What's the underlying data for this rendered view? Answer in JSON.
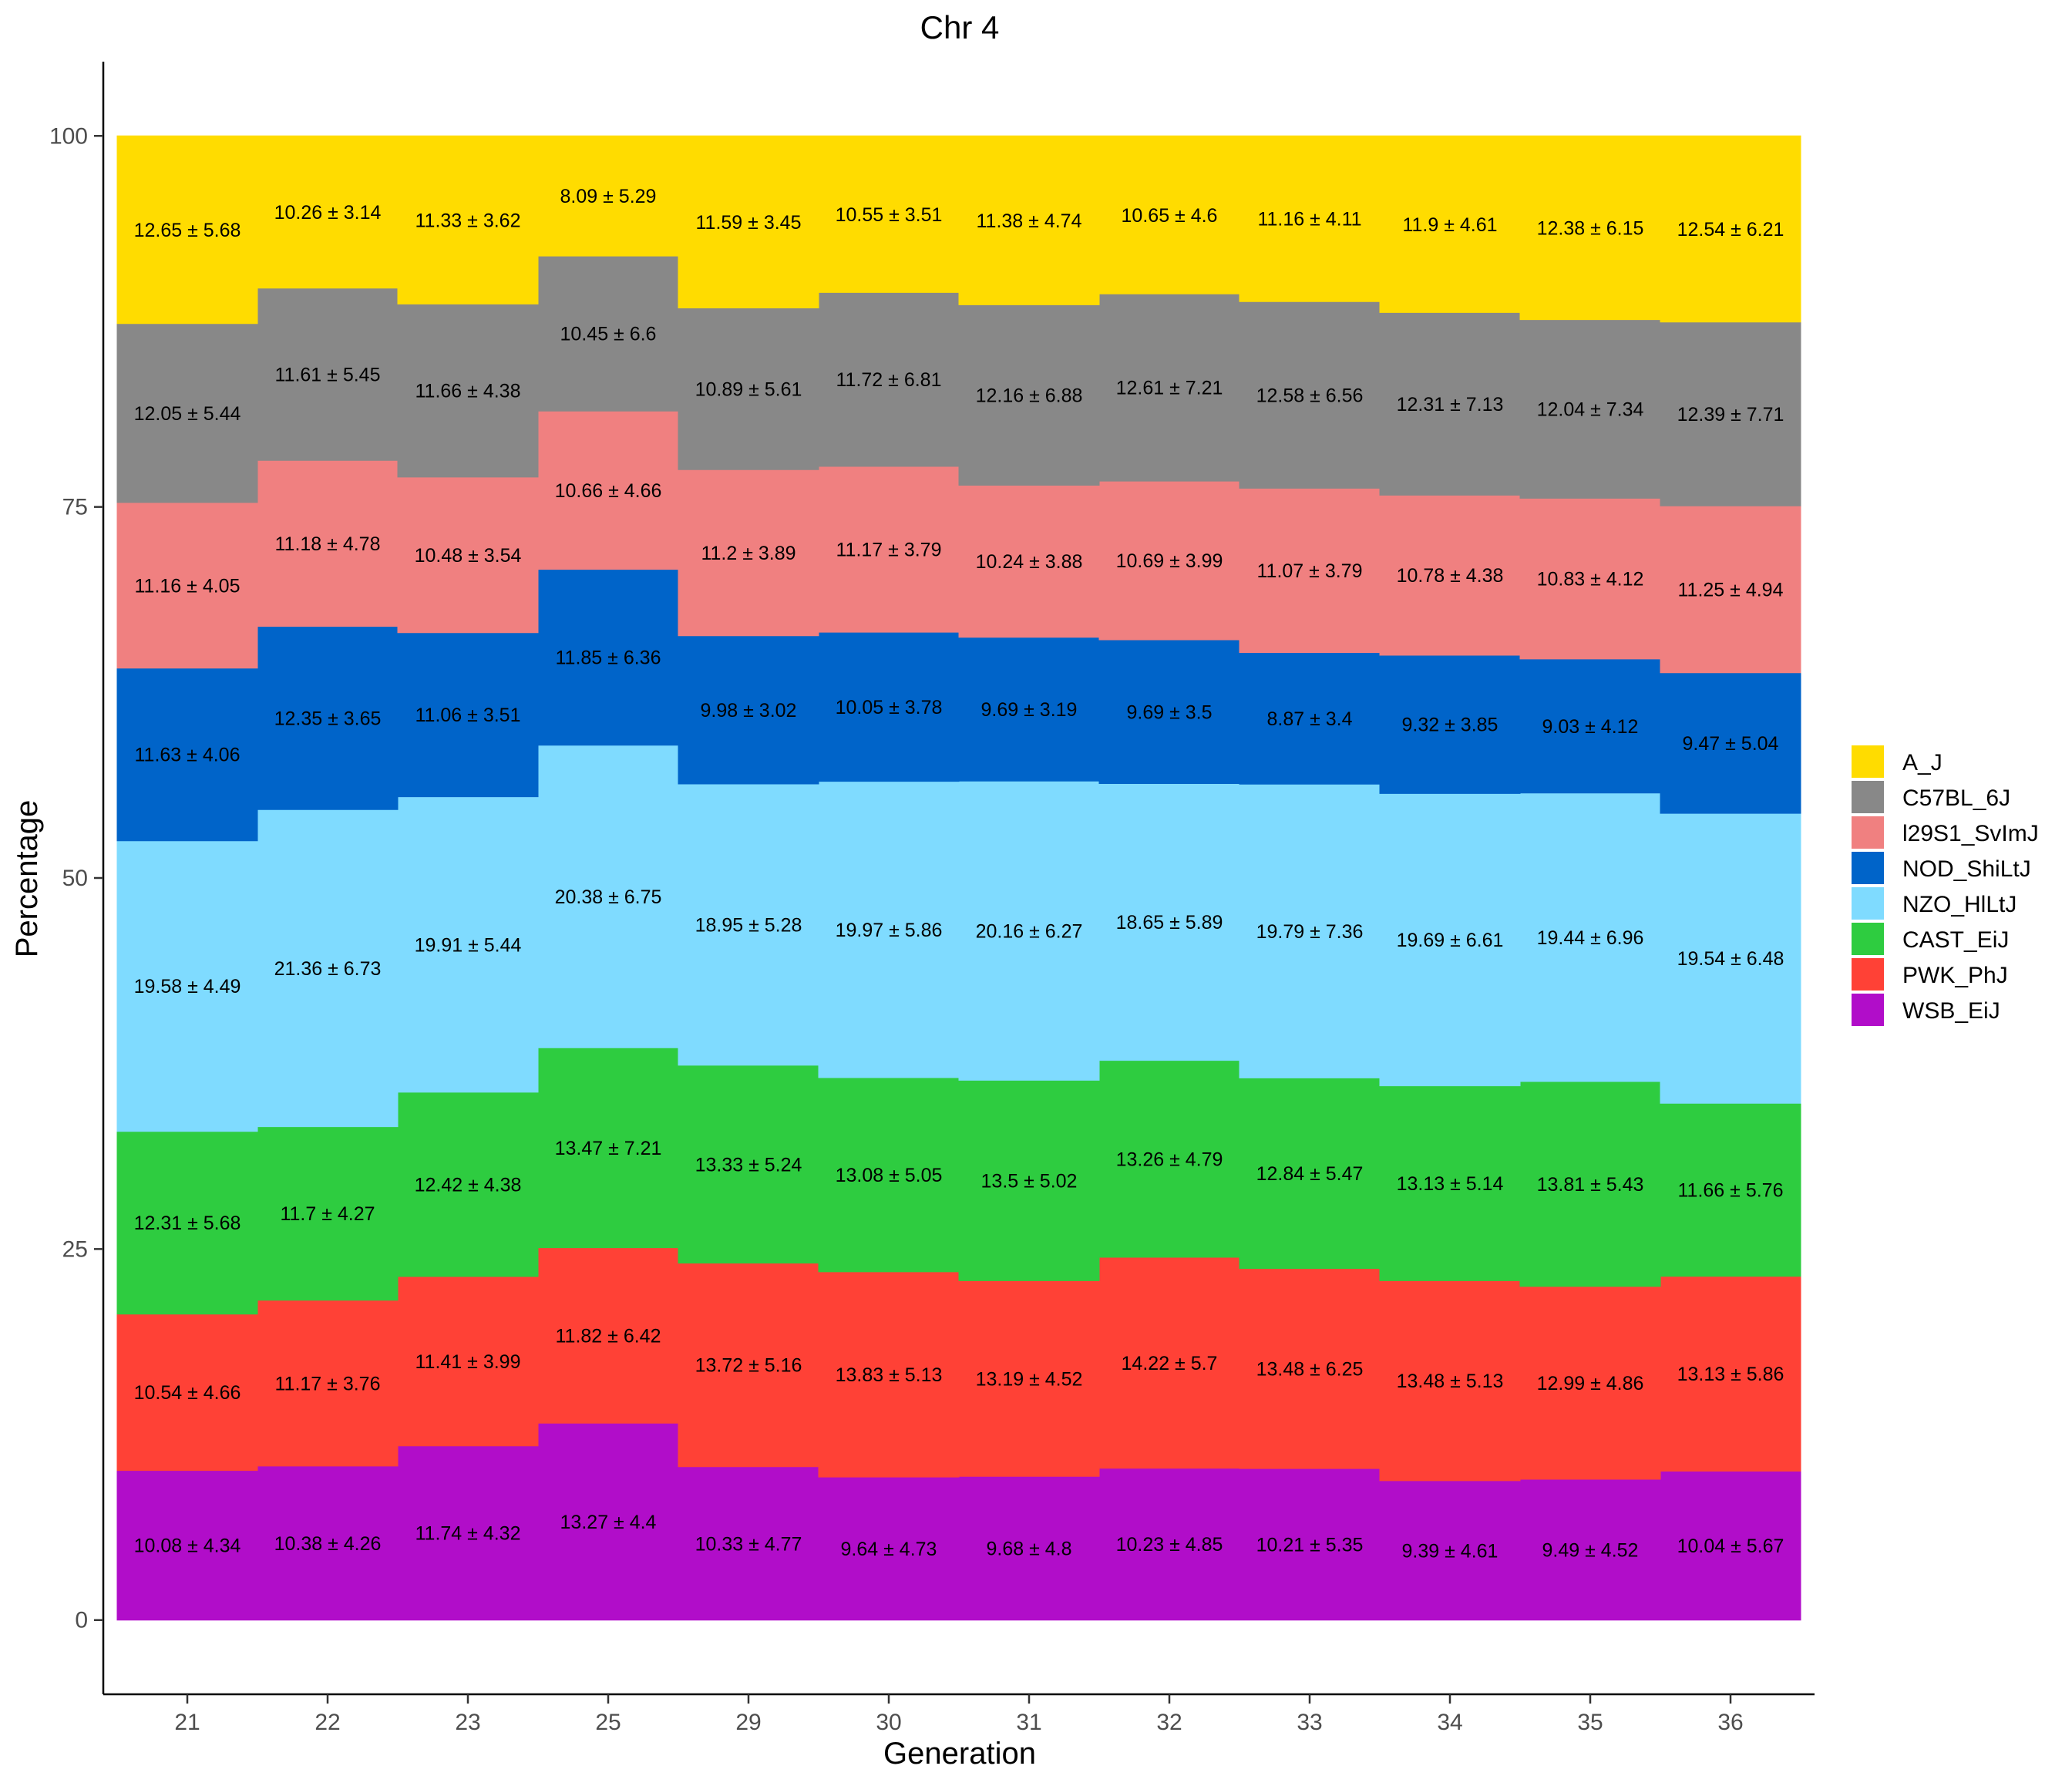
{
  "chart_data": {
    "type": "stacked-step-area",
    "title": "Chr 4",
    "xlabel": "Generation",
    "ylabel": "Percentage",
    "ylim": [
      -5,
      105
    ],
    "yticks": [
      0,
      25,
      50,
      75,
      100
    ],
    "categories": [
      "21",
      "22",
      "23",
      "25",
      "29",
      "30",
      "31",
      "32",
      "33",
      "34",
      "35",
      "36"
    ],
    "series": [
      {
        "name": "WSB_EiJ",
        "color": "#B10DC9",
        "values": [
          10.08,
          10.38,
          11.74,
          13.27,
          10.33,
          9.64,
          9.68,
          10.23,
          10.21,
          9.39,
          9.49,
          10.04
        ],
        "labels": [
          "10.08 ± 4.34",
          "10.38 ± 4.26",
          "11.74 ± 4.32",
          "13.27 ± 4.4",
          "10.33 ± 4.77",
          "9.64 ± 4.73",
          "9.68 ± 4.8",
          "10.23 ± 4.85",
          "10.21 ± 5.35",
          "9.39 ± 4.61",
          "9.49 ± 4.52",
          "10.04 ± 5.67"
        ]
      },
      {
        "name": "PWK_PhJ",
        "color": "#FF4136",
        "values": [
          10.54,
          11.17,
          11.41,
          11.82,
          13.72,
          13.83,
          13.19,
          14.22,
          13.48,
          13.48,
          12.99,
          13.13
        ],
        "labels": [
          "10.54 ± 4.66",
          "11.17 ± 3.76",
          "11.41 ± 3.99",
          "11.82 ± 6.42",
          "13.72 ± 5.16",
          "13.83 ± 5.13",
          "13.19 ± 4.52",
          "14.22 ± 5.7",
          "13.48 ± 6.25",
          "13.48 ± 5.13",
          "12.99 ± 4.86",
          "13.13 ± 5.86"
        ]
      },
      {
        "name": "CAST_EiJ",
        "color": "#2ECC40",
        "values": [
          12.31,
          11.7,
          12.42,
          13.47,
          13.33,
          13.08,
          13.5,
          13.26,
          12.84,
          13.13,
          13.81,
          11.66
        ],
        "labels": [
          "12.31 ± 5.68",
          "11.7 ± 4.27",
          "12.42 ± 4.38",
          "13.47 ± 7.21",
          "13.33 ± 5.24",
          "13.08 ± 5.05",
          "13.5 ± 5.02",
          "13.26 ± 4.79",
          "12.84 ± 5.47",
          "13.13 ± 5.14",
          "13.81 ± 5.43",
          "11.66 ± 5.76"
        ]
      },
      {
        "name": "NZO_HlLtJ",
        "color": "#7FDBFF",
        "values": [
          19.58,
          21.36,
          19.91,
          20.38,
          18.95,
          19.97,
          20.16,
          18.65,
          19.79,
          19.69,
          19.44,
          19.54
        ],
        "labels": [
          "19.58 ± 4.49",
          "21.36 ± 6.73",
          "19.91 ± 5.44",
          "20.38 ± 6.75",
          "18.95 ± 5.28",
          "19.97 ± 5.86",
          "20.16 ± 6.27",
          "18.65 ± 5.89",
          "19.79 ± 7.36",
          "19.69 ± 6.61",
          "19.44 ± 6.96",
          "19.54 ± 6.48"
        ]
      },
      {
        "name": "NOD_ShiLtJ",
        "color": "#0064C9",
        "values": [
          11.63,
          12.35,
          11.06,
          11.85,
          9.98,
          10.05,
          9.69,
          9.69,
          8.87,
          9.32,
          9.03,
          9.47
        ],
        "labels": [
          "11.63 ± 4.06",
          "12.35 ± 3.65",
          "11.06 ± 3.51",
          "11.85 ± 6.36",
          "9.98 ± 3.02",
          "10.05 ± 3.78",
          "9.69 ± 3.19",
          "9.69 ± 3.5",
          "8.87 ± 3.4",
          "9.32 ± 3.85",
          "9.03 ± 4.12",
          "9.47 ± 5.04"
        ]
      },
      {
        "name": "l29S1_SvImJ",
        "color": "#F08080",
        "values": [
          11.16,
          11.18,
          10.48,
          10.66,
          11.2,
          11.17,
          10.24,
          10.69,
          11.07,
          10.78,
          10.83,
          11.25
        ],
        "labels": [
          "11.16 ± 4.05",
          "11.18 ± 4.78",
          "10.48 ± 3.54",
          "10.66 ± 4.66",
          "11.2 ± 3.89",
          "11.17 ± 3.79",
          "10.24 ± 3.88",
          "10.69 ± 3.99",
          "11.07 ± 3.79",
          "10.78 ± 4.38",
          "10.83 ± 4.12",
          "11.25 ± 4.94"
        ]
      },
      {
        "name": "C57BL_6J",
        "color": "#888888",
        "values": [
          12.05,
          11.61,
          11.66,
          10.45,
          10.89,
          11.72,
          12.16,
          12.61,
          12.58,
          12.31,
          12.04,
          12.39
        ],
        "labels": [
          "12.05 ± 5.44",
          "11.61 ± 5.45",
          "11.66 ± 4.38",
          "10.45 ± 6.6",
          "10.89 ± 5.61",
          "11.72 ± 6.81",
          "12.16 ± 6.88",
          "12.61 ± 7.21",
          "12.58 ± 6.56",
          "12.31 ± 7.13",
          "12.04 ± 7.34",
          "12.39 ± 7.71"
        ]
      },
      {
        "name": "A_J",
        "color": "#FFDC00",
        "values": [
          12.65,
          10.26,
          11.33,
          8.09,
          11.59,
          10.55,
          11.38,
          10.65,
          11.16,
          11.9,
          12.38,
          12.54
        ],
        "labels": [
          "12.65 ± 5.68",
          "10.26 ± 3.14",
          "11.33 ± 3.62",
          "8.09 ± 5.29",
          "11.59 ± 3.45",
          "10.55 ± 3.51",
          "11.38 ± 4.74",
          "10.65 ± 4.6",
          "11.16 ± 4.11",
          "11.9 ± 4.61",
          "12.38 ± 6.15",
          "12.54 ± 6.21"
        ]
      }
    ],
    "legend_order": [
      "A_J",
      "C57BL_6J",
      "l29S1_SvImJ",
      "NOD_ShiLtJ",
      "NZO_HlLtJ",
      "CAST_EiJ",
      "PWK_PhJ",
      "WSB_EiJ"
    ],
    "legend_position": "right",
    "grid": false
  }
}
